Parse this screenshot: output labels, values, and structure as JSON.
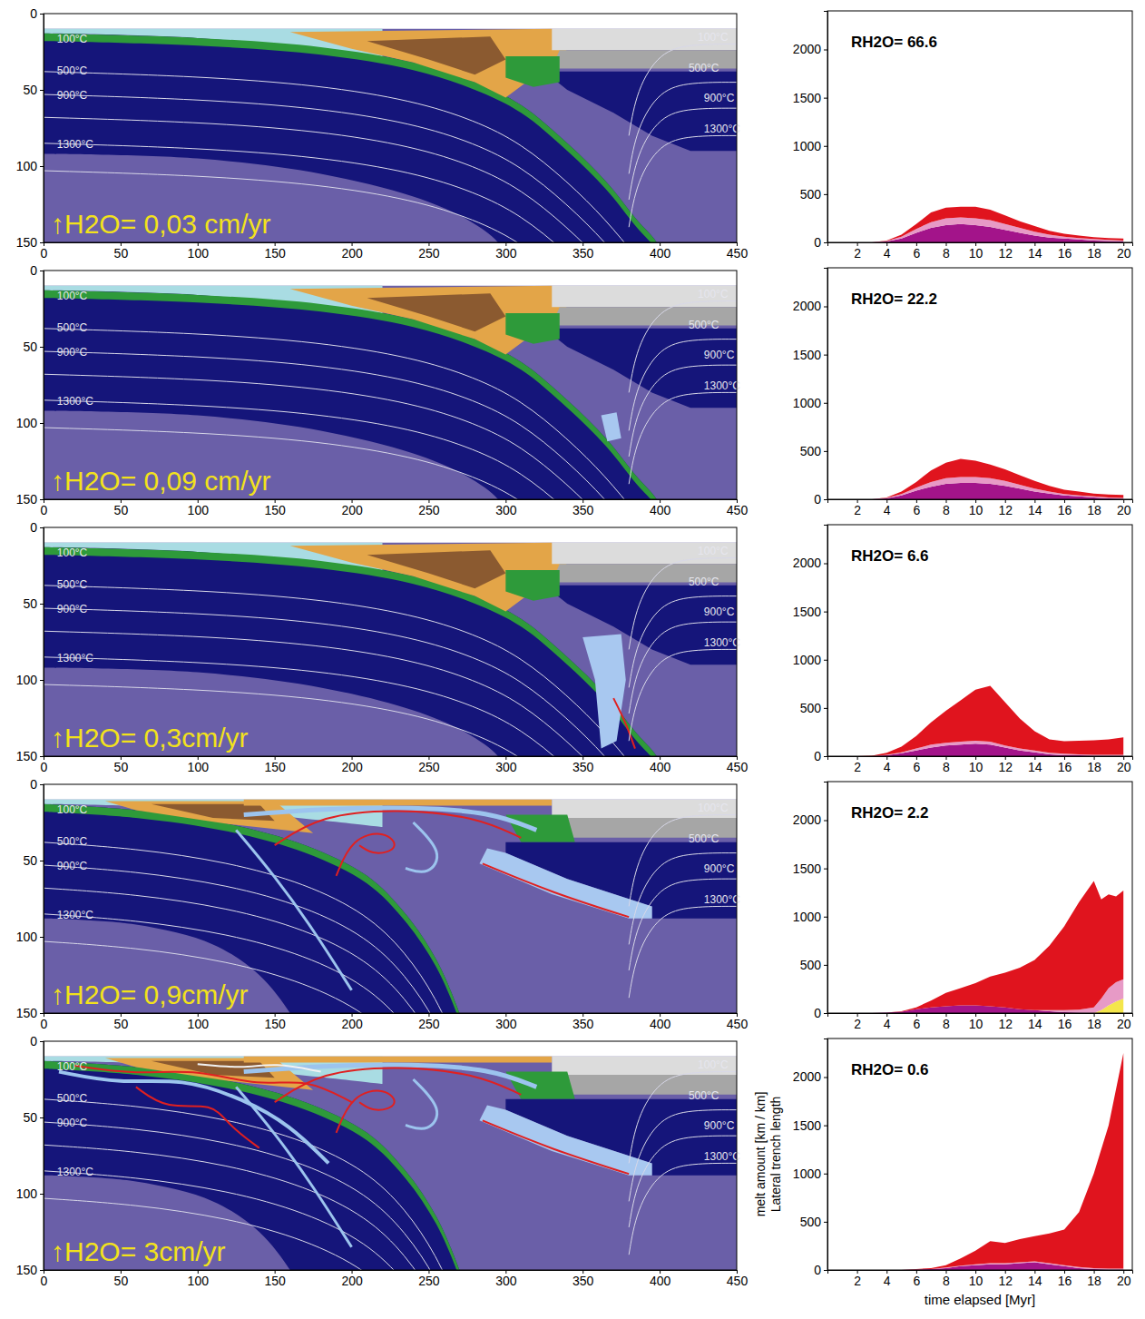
{
  "chart_data": [
    {
      "type": "cross_section",
      "xlim": [
        0,
        450
      ],
      "ylim": [
        150,
        0
      ],
      "xticks": [
        0,
        50,
        100,
        150,
        200,
        250,
        300,
        350,
        400,
        450
      ],
      "yticks": [
        0,
        50,
        100,
        150
      ],
      "annotation": "↑H2O= 0,03 cm/yr",
      "isotherm_labels": [
        "100°C",
        "500°C",
        "900°C",
        "1300°C"
      ]
    },
    {
      "type": "area",
      "stacked": true,
      "title": "RH2O= 66.6",
      "x": [
        0,
        1,
        2,
        3,
        4,
        5,
        6,
        7,
        8,
        9,
        10,
        11,
        12,
        13,
        14,
        15,
        16,
        17,
        18,
        19,
        20
      ],
      "series": [
        {
          "color": "#a3148a",
          "values": [
            0,
            0,
            0,
            0,
            10,
            40,
            100,
            150,
            180,
            190,
            180,
            160,
            130,
            100,
            70,
            50,
            40,
            30,
            20,
            15,
            10
          ]
        },
        {
          "color": "#e79ac6",
          "values": [
            0,
            0,
            0,
            0,
            5,
            20,
            40,
            60,
            70,
            70,
            70,
            70,
            60,
            50,
            40,
            30,
            20,
            15,
            15,
            10,
            10
          ]
        },
        {
          "color": "#e0141e",
          "values": [
            0,
            0,
            0,
            0,
            5,
            20,
            50,
            100,
            110,
            110,
            120,
            110,
            90,
            70,
            60,
            40,
            30,
            25,
            20,
            20,
            20
          ]
        }
      ],
      "xlim": [
        0,
        20.6
      ],
      "ylim": [
        0,
        2400
      ],
      "xticks": [
        2,
        4,
        6,
        8,
        10,
        12,
        14,
        16,
        18,
        20
      ],
      "yticks": [
        0,
        500,
        1000,
        1500,
        2000
      ]
    },
    {
      "type": "cross_section",
      "xlim": [
        0,
        450
      ],
      "ylim": [
        150,
        0
      ],
      "xticks": [
        0,
        50,
        100,
        150,
        200,
        250,
        300,
        350,
        400,
        450
      ],
      "yticks": [
        0,
        50,
        100,
        150
      ],
      "annotation": "↑H2O= 0,09 cm/yr",
      "isotherm_labels": [
        "100°C",
        "500°C",
        "900°C",
        "1300°C"
      ]
    },
    {
      "type": "area",
      "stacked": true,
      "title": "RH2O= 22.2",
      "x": [
        0,
        1,
        2,
        3,
        4,
        5,
        6,
        7,
        8,
        9,
        10,
        11,
        12,
        13,
        14,
        15,
        16,
        17,
        18,
        19,
        20
      ],
      "series": [
        {
          "color": "#a3148a",
          "values": [
            0,
            0,
            0,
            0,
            10,
            40,
            90,
            130,
            160,
            170,
            170,
            160,
            140,
            110,
            80,
            60,
            40,
            30,
            20,
            10,
            5
          ]
        },
        {
          "color": "#e79ac6",
          "values": [
            0,
            0,
            0,
            0,
            5,
            15,
            30,
            50,
            60,
            60,
            60,
            60,
            50,
            40,
            30,
            20,
            15,
            10,
            10,
            10,
            10
          ]
        },
        {
          "color": "#e0141e",
          "values": [
            0,
            0,
            0,
            0,
            5,
            25,
            60,
            120,
            160,
            190,
            170,
            140,
            120,
            100,
            80,
            60,
            45,
            40,
            30,
            30,
            30
          ]
        }
      ],
      "xlim": [
        0,
        20.6
      ],
      "ylim": [
        0,
        2400
      ],
      "xticks": [
        2,
        4,
        6,
        8,
        10,
        12,
        14,
        16,
        18,
        20
      ],
      "yticks": [
        0,
        500,
        1000,
        1500,
        2000
      ]
    },
    {
      "type": "cross_section",
      "xlim": [
        0,
        450
      ],
      "ylim": [
        150,
        0
      ],
      "xticks": [
        0,
        50,
        100,
        150,
        200,
        250,
        300,
        350,
        400,
        450
      ],
      "yticks": [
        0,
        50,
        100,
        150
      ],
      "annotation": "↑H2O= 0,3cm/yr",
      "isotherm_labels": [
        "100°C",
        "500°C",
        "900°C",
        "1300°C"
      ]
    },
    {
      "type": "area",
      "stacked": true,
      "title": "RH2O= 6.6",
      "x": [
        0,
        1,
        2,
        3,
        4,
        5,
        6,
        7,
        8,
        9,
        10,
        11,
        12,
        13,
        14,
        15,
        16,
        17,
        18,
        19,
        20
      ],
      "series": [
        {
          "color": "#a3148a",
          "values": [
            0,
            0,
            0,
            0,
            10,
            30,
            60,
            90,
            110,
            120,
            130,
            120,
            90,
            60,
            40,
            20,
            10,
            10,
            5,
            5,
            5
          ]
        },
        {
          "color": "#e79ac6",
          "values": [
            0,
            0,
            0,
            0,
            5,
            10,
            20,
            30,
            30,
            30,
            30,
            30,
            20,
            20,
            20,
            15,
            15,
            10,
            10,
            10,
            10
          ]
        },
        {
          "color": "#e0141e",
          "values": [
            0,
            0,
            0,
            5,
            20,
            60,
            130,
            230,
            330,
            430,
            530,
            580,
            450,
            310,
            200,
            140,
            130,
            140,
            150,
            160,
            180
          ]
        }
      ],
      "xlim": [
        0,
        20.6
      ],
      "ylim": [
        0,
        2400
      ],
      "xticks": [
        2,
        4,
        6,
        8,
        10,
        12,
        14,
        16,
        18,
        20
      ],
      "yticks": [
        0,
        500,
        1000,
        1500,
        2000
      ]
    },
    {
      "type": "cross_section",
      "xlim": [
        0,
        450
      ],
      "ylim": [
        150,
        0
      ],
      "xticks": [
        0,
        50,
        100,
        150,
        200,
        250,
        300,
        350,
        400,
        450
      ],
      "yticks": [
        0,
        50,
        100,
        150
      ],
      "annotation": "↑H2O= 0,9cm/yr",
      "isotherm_labels": [
        "100°C",
        "500°C",
        "900°C",
        "1300°C"
      ]
    },
    {
      "type": "area",
      "stacked": true,
      "title": "RH2O= 2.2",
      "x": [
        0,
        1,
        2,
        3,
        4,
        5,
        6,
        7,
        8,
        9,
        10,
        11,
        12,
        13,
        14,
        15,
        16,
        17,
        18,
        18.5,
        19,
        19.5,
        20
      ],
      "series": [
        {
          "color": "#f4e64b",
          "values": [
            0,
            0,
            0,
            0,
            0,
            0,
            0,
            0,
            0,
            0,
            0,
            0,
            0,
            0,
            0,
            0,
            0,
            0,
            0,
            30,
            80,
            120,
            150
          ]
        },
        {
          "color": "#a3148a",
          "values": [
            0,
            0,
            0,
            0,
            5,
            15,
            40,
            60,
            70,
            80,
            80,
            70,
            60,
            40,
            30,
            20,
            10,
            5,
            0,
            0,
            0,
            0,
            0
          ]
        },
        {
          "color": "#e79ac6",
          "values": [
            0,
            0,
            0,
            0,
            0,
            0,
            0,
            0,
            0,
            0,
            0,
            0,
            0,
            0,
            0,
            10,
            20,
            30,
            60,
            120,
            180,
            200,
            200
          ]
        },
        {
          "color": "#e0141e",
          "values": [
            0,
            0,
            0,
            0,
            0,
            5,
            20,
            70,
            140,
            180,
            230,
            310,
            360,
            430,
            520,
            670,
            870,
            1115,
            1310,
            1030,
            970,
            890,
            920
          ]
        }
      ],
      "xlim": [
        0,
        20.6
      ],
      "ylim": [
        0,
        2400
      ],
      "xticks": [
        2,
        4,
        6,
        8,
        10,
        12,
        14,
        16,
        18,
        20
      ],
      "yticks": [
        0,
        500,
        1000,
        1500,
        2000
      ]
    },
    {
      "type": "cross_section",
      "xlim": [
        0,
        450
      ],
      "ylim": [
        150,
        0
      ],
      "xticks": [
        0,
        50,
        100,
        150,
        200,
        250,
        300,
        350,
        400,
        450
      ],
      "yticks": [
        0,
        50,
        100,
        150
      ],
      "annotation": "↑H2O= 3cm/yr",
      "isotherm_labels": [
        "100°C",
        "500°C",
        "900°C",
        "1300°C"
      ]
    },
    {
      "type": "area",
      "stacked": true,
      "title": "RH2O= 0.6",
      "x": [
        0,
        1,
        2,
        3,
        4,
        5,
        6,
        7,
        8,
        9,
        10,
        11,
        12,
        13,
        14,
        15,
        16,
        17,
        18,
        19,
        20
      ],
      "series": [
        {
          "color": "#a3148a",
          "values": [
            0,
            0,
            0,
            0,
            0,
            0,
            5,
            10,
            20,
            40,
            50,
            60,
            60,
            70,
            80,
            60,
            40,
            20,
            10,
            5,
            5
          ]
        },
        {
          "color": "#e79ac6",
          "values": [
            0,
            0,
            0,
            0,
            0,
            0,
            0,
            0,
            5,
            5,
            10,
            10,
            10,
            10,
            10,
            10,
            10,
            10,
            10,
            10,
            10
          ]
        },
        {
          "color": "#e0141e",
          "values": [
            0,
            0,
            0,
            0,
            0,
            0,
            5,
            10,
            25,
            75,
            140,
            230,
            210,
            240,
            260,
            310,
            370,
            570,
            980,
            1485,
            2235
          ]
        }
      ],
      "xlim": [
        0,
        20.6
      ],
      "ylim": [
        0,
        2400
      ],
      "xticks": [
        2,
        4,
        6,
        8,
        10,
        12,
        14,
        16,
        18,
        20
      ],
      "yticks": [
        0,
        500,
        1000,
        1500,
        2000
      ],
      "xlabel": "time elapsed [Myr]",
      "ylabel": [
        "melt amount [km / km]",
        "Lateral trench length"
      ]
    }
  ]
}
